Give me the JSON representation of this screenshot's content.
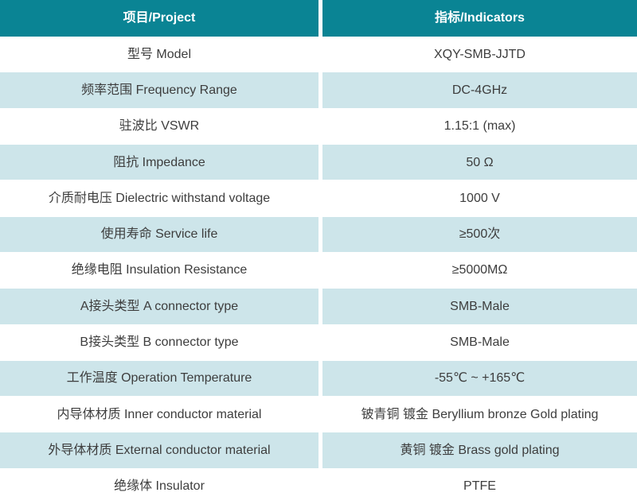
{
  "table": {
    "header": {
      "project": "项目/Project",
      "indicators": "指标/Indicators"
    },
    "rows": [
      {
        "project": "型号 Model",
        "indicator": "XQY-SMB-JJTD"
      },
      {
        "project": "频率范围 Frequency Range",
        "indicator": "DC-4GHz"
      },
      {
        "project": "驻波比 VSWR",
        "indicator": "1.15:1 (max)"
      },
      {
        "project": "阻抗 Impedance",
        "indicator": "50 Ω"
      },
      {
        "project": "介质耐电压 Dielectric withstand voltage",
        "indicator": "1000 V"
      },
      {
        "project": "使用寿命 Service life",
        "indicator": "≥500次"
      },
      {
        "project": "绝缘电阻 Insulation Resistance",
        "indicator": "≥5000MΩ"
      },
      {
        "project": "A接头类型 A connector type",
        "indicator": "SMB-Male"
      },
      {
        "project": "B接头类型 B connector type",
        "indicator": "SMB-Male"
      },
      {
        "project": "工作温度 Operation Temperature",
        "indicator": "-55℃ ~ +165℃"
      },
      {
        "project": "内导体材质 Inner conductor material",
        "indicator": "铍青铜 镀金 Beryllium bronze Gold plating"
      },
      {
        "project": "外导体材质 External conductor material",
        "indicator": "黄铜 镀金 Brass gold plating"
      },
      {
        "project": "绝缘体 Insulator",
        "indicator": "PTFE"
      }
    ],
    "colors": {
      "header_bg": "#0a8494",
      "header_text": "#ffffff",
      "alt_row_bg": "#cde5ea",
      "body_text": "#3d3d3d"
    }
  }
}
